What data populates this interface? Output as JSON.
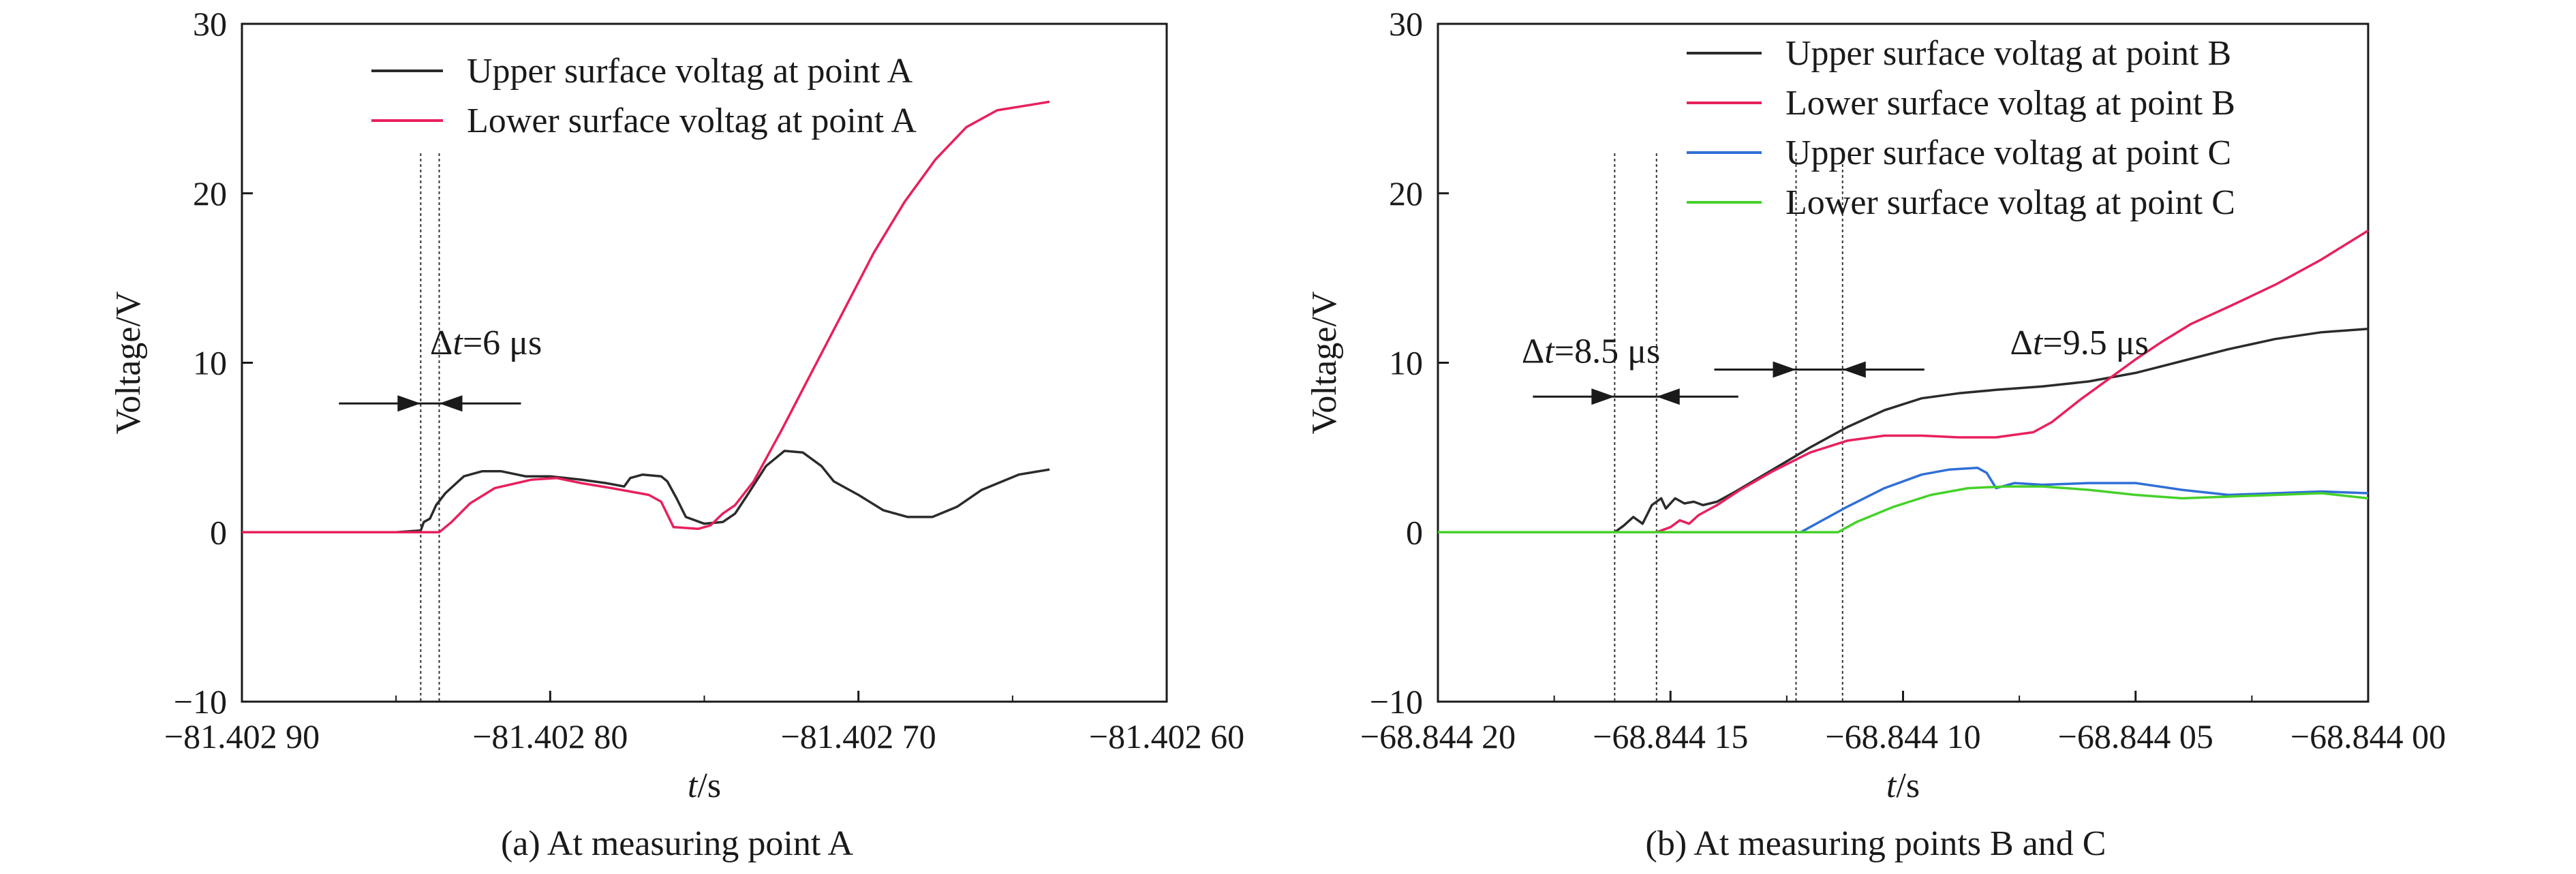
{
  "chart_data": [
    {
      "type": "line",
      "caption": "(a) At measuring point A",
      "xlabel_var": "t",
      "xlabel_unit": "/s",
      "ylabel": "Voltage/V",
      "xlim": [
        -81.4029,
        -81.4026
      ],
      "ylim": [
        -10,
        30
      ],
      "x_ticks": [
        -81.4029,
        -81.4028,
        -81.4027,
        -81.4026
      ],
      "x_tick_labels": [
        "−81.402 90",
        "−81.402 80",
        "−81.402 70",
        "−81.402 60"
      ],
      "y_ticks": [
        -10,
        0,
        10,
        20,
        30
      ],
      "y_tick_labels": [
        "−10",
        "0",
        "10",
        "20",
        "30"
      ],
      "grid": false,
      "legend": "top-center",
      "series": [
        {
          "name": "Upper surface voltag at point A",
          "color": "#2b2b2b",
          "points": [
            [
              -81.4029,
              0
            ],
            [
              -81.40285,
              0
            ],
            [
              -81.402842,
              0.1
            ],
            [
              -81.402841,
              0.6
            ],
            [
              -81.402839,
              0.8
            ],
            [
              -81.402837,
              1.6
            ],
            [
              -81.402834,
              2.3
            ],
            [
              -81.402828,
              3.3
            ],
            [
              -81.402822,
              3.6
            ],
            [
              -81.402816,
              3.6
            ],
            [
              -81.402808,
              3.3
            ],
            [
              -81.4028,
              3.3
            ],
            [
              -81.40279,
              3.1
            ],
            [
              -81.402782,
              2.9
            ],
            [
              -81.402776,
              2.7
            ],
            [
              -81.402774,
              3.2
            ],
            [
              -81.40277,
              3.4
            ],
            [
              -81.402764,
              3.3
            ],
            [
              -81.402762,
              3.0
            ],
            [
              -81.402759,
              2.0
            ],
            [
              -81.402756,
              0.9
            ],
            [
              -81.40275,
              0.5
            ],
            [
              -81.402744,
              0.6
            ],
            [
              -81.40274,
              1.1
            ],
            [
              -81.402736,
              2.2
            ],
            [
              -81.40273,
              3.9
            ],
            [
              -81.402724,
              4.8
            ],
            [
              -81.402718,
              4.7
            ],
            [
              -81.402712,
              3.9
            ],
            [
              -81.402708,
              3.0
            ],
            [
              -81.402705,
              2.7
            ],
            [
              -81.4027,
              2.2
            ],
            [
              -81.402692,
              1.3
            ],
            [
              -81.402684,
              0.9
            ],
            [
              -81.402676,
              0.9
            ],
            [
              -81.402668,
              1.5
            ],
            [
              -81.40266,
              2.5
            ],
            [
              -81.402648,
              3.4
            ],
            [
              -81.402638,
              3.7
            ]
          ]
        },
        {
          "name": "Lower surface voltag at point A",
          "color": "#e8205c",
          "points": [
            [
              -81.4029,
              0
            ],
            [
              -81.402836,
              0
            ],
            [
              -81.402832,
              0.6
            ],
            [
              -81.402826,
              1.7
            ],
            [
              -81.402818,
              2.6
            ],
            [
              -81.402806,
              3.1
            ],
            [
              -81.402798,
              3.2
            ],
            [
              -81.40279,
              2.9
            ],
            [
              -81.40278,
              2.6
            ],
            [
              -81.402768,
              2.2
            ],
            [
              -81.402764,
              1.8
            ],
            [
              -81.40276,
              0.3
            ],
            [
              -81.402752,
              0.2
            ],
            [
              -81.402748,
              0.4
            ],
            [
              -81.402744,
              1.1
            ],
            [
              -81.40274,
              1.6
            ],
            [
              -81.402734,
              3.0
            ],
            [
              -81.402725,
              6.0
            ],
            [
              -81.402715,
              9.5
            ],
            [
              -81.402705,
              13.0
            ],
            [
              -81.402695,
              16.5
            ],
            [
              -81.402685,
              19.5
            ],
            [
              -81.402675,
              22.0
            ],
            [
              -81.402665,
              23.9
            ],
            [
              -81.402655,
              24.9
            ],
            [
              -81.402638,
              25.4
            ]
          ]
        }
      ],
      "annotations": [
        {
          "text": "=6 μs",
          "delta": "Δ",
          "var": "t",
          "x": -81.402839,
          "y": 10.5
        }
      ],
      "marker_lines_x": [
        -81.402842,
        -81.402836
      ]
    },
    {
      "type": "line",
      "caption": "(b) At measuring points B and C",
      "xlabel_var": "t",
      "xlabel_unit": "/s",
      "ylabel": "Voltage/V",
      "xlim": [
        -68.8442,
        -68.844
      ],
      "ylim": [
        -10,
        30
      ],
      "x_ticks": [
        -68.8442,
        -68.84415,
        -68.8441,
        -68.84405,
        -68.844
      ],
      "x_tick_labels": [
        "−68.844 20",
        "−68.844 15",
        "−68.844 10",
        "−68.844 05",
        "−68.844 00"
      ],
      "y_ticks": [
        -10,
        0,
        10,
        20,
        30
      ],
      "y_tick_labels": [
        "−10",
        "0",
        "10",
        "20",
        "30"
      ],
      "grid": false,
      "legend": "top-right",
      "series": [
        {
          "name": "Upper surface voltag at point B",
          "color": "#2b2b2b",
          "points": [
            [
              -68.8442,
              0
            ],
            [
              -68.844162,
              0
            ],
            [
              -68.84416,
              0.4
            ],
            [
              -68.844158,
              0.9
            ],
            [
              -68.844156,
              0.5
            ],
            [
              -68.844154,
              1.6
            ],
            [
              -68.844152,
              2.0
            ],
            [
              -68.844151,
              1.4
            ],
            [
              -68.844149,
              2.0
            ],
            [
              -68.844147,
              1.7
            ],
            [
              -68.844145,
              1.8
            ],
            [
              -68.844143,
              1.6
            ],
            [
              -68.84414,
              1.8
            ],
            [
              -68.844136,
              2.4
            ],
            [
              -68.844128,
              3.7
            ],
            [
              -68.84412,
              5.0
            ],
            [
              -68.844112,
              6.2
            ],
            [
              -68.844104,
              7.2
            ],
            [
              -68.844096,
              7.9
            ],
            [
              -68.844088,
              8.2
            ],
            [
              -68.84408,
              8.4
            ],
            [
              -68.84407,
              8.6
            ],
            [
              -68.84406,
              8.9
            ],
            [
              -68.84405,
              9.4
            ],
            [
              -68.84404,
              10.1
            ],
            [
              -68.84403,
              10.8
            ],
            [
              -68.84402,
              11.4
            ],
            [
              -68.84401,
              11.8
            ],
            [
              -68.844,
              12.0
            ]
          ]
        },
        {
          "name": "Lower surface voltag at point B",
          "color": "#e8205c",
          "points": [
            [
              -68.8442,
              0
            ],
            [
              -68.844153,
              0
            ],
            [
              -68.84415,
              0.3
            ],
            [
              -68.844148,
              0.7
            ],
            [
              -68.844146,
              0.5
            ],
            [
              -68.844144,
              1.0
            ],
            [
              -68.84414,
              1.6
            ],
            [
              -68.844135,
              2.5
            ],
            [
              -68.844128,
              3.6
            ],
            [
              -68.84412,
              4.7
            ],
            [
              -68.844112,
              5.4
            ],
            [
              -68.844104,
              5.7
            ],
            [
              -68.844096,
              5.7
            ],
            [
              -68.844088,
              5.6
            ],
            [
              -68.84408,
              5.6
            ],
            [
              -68.844072,
              5.9
            ],
            [
              -68.844068,
              6.5
            ],
            [
              -68.844062,
              7.8
            ],
            [
              -68.844056,
              9.0
            ],
            [
              -68.84405,
              10.2
            ],
            [
              -68.844044,
              11.3
            ],
            [
              -68.844038,
              12.3
            ],
            [
              -68.84403,
              13.3
            ],
            [
              -68.84402,
              14.6
            ],
            [
              -68.84401,
              16.1
            ],
            [
              -68.844,
              17.8
            ]
          ]
        },
        {
          "name": "Upper surface voltag at point C",
          "color": "#2f6fd6",
          "points": [
            [
              -68.8442,
              0
            ],
            [
              -68.844122,
              0
            ],
            [
              -68.84412,
              0.3
            ],
            [
              -68.844112,
              1.5
            ],
            [
              -68.844104,
              2.6
            ],
            [
              -68.844096,
              3.4
            ],
            [
              -68.84409,
              3.7
            ],
            [
              -68.844084,
              3.8
            ],
            [
              -68.844082,
              3.5
            ],
            [
              -68.84408,
              2.6
            ],
            [
              -68.844076,
              2.9
            ],
            [
              -68.84407,
              2.8
            ],
            [
              -68.84406,
              2.9
            ],
            [
              -68.84405,
              2.9
            ],
            [
              -68.84404,
              2.5
            ],
            [
              -68.84403,
              2.2
            ],
            [
              -68.84402,
              2.3
            ],
            [
              -68.84401,
              2.4
            ],
            [
              -68.844,
              2.3
            ]
          ]
        },
        {
          "name": "Lower surface voltag at point C",
          "color": "#45d12a",
          "points": [
            [
              -68.8442,
              0
            ],
            [
              -68.844114,
              0
            ],
            [
              -68.84411,
              0.6
            ],
            [
              -68.844102,
              1.5
            ],
            [
              -68.844094,
              2.2
            ],
            [
              -68.844086,
              2.6
            ],
            [
              -68.844078,
              2.7
            ],
            [
              -68.84407,
              2.7
            ],
            [
              -68.84406,
              2.5
            ],
            [
              -68.84405,
              2.2
            ],
            [
              -68.84404,
              2.0
            ],
            [
              -68.84403,
              2.1
            ],
            [
              -68.84402,
              2.2
            ],
            [
              -68.84401,
              2.3
            ],
            [
              -68.844,
              2.0
            ]
          ]
        }
      ],
      "annotations": [
        {
          "text": "=8.5 μs",
          "delta": "Δ",
          "var": "t",
          "x": -68.844182,
          "y": 10.0
        },
        {
          "text": "=9.5 μs",
          "delta": "Δ",
          "var": "t",
          "x": -68.844077,
          "y": 10.5
        }
      ],
      "marker_lines_x": [
        -68.844162,
        -68.844153,
        -68.844123,
        -68.844113
      ]
    }
  ]
}
